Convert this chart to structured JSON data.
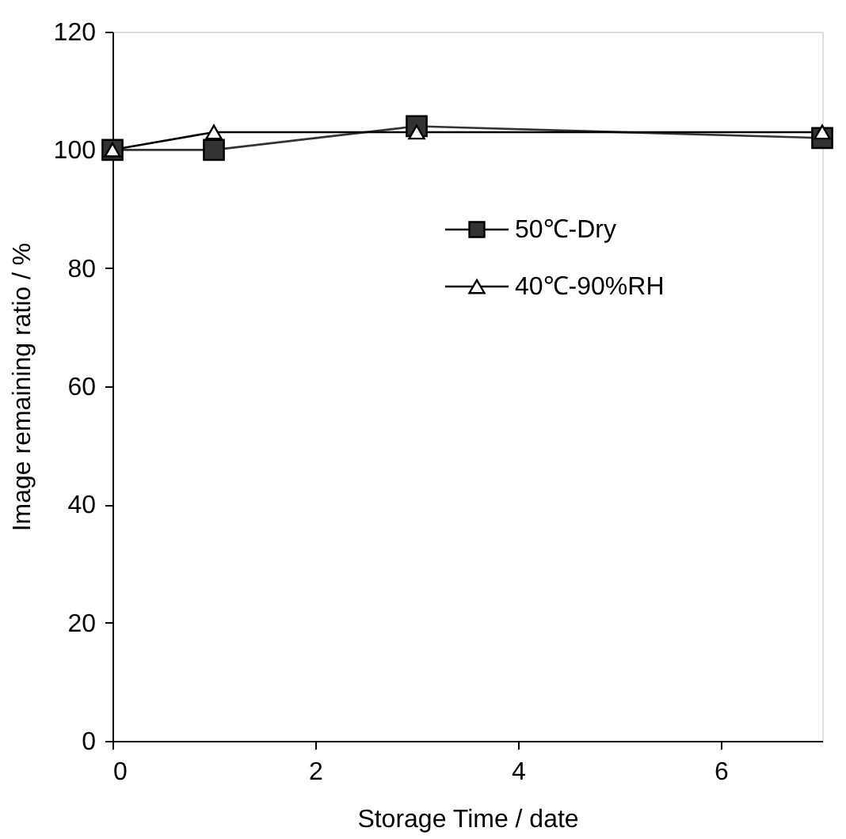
{
  "chart_data": {
    "type": "line",
    "xlabel": "Storage Time / date",
    "ylabel": "Image remaining ratio / %",
    "x": [
      0,
      1,
      3,
      7
    ],
    "series": [
      {
        "name": "50℃-Dry",
        "color": "#333333",
        "marker": "square",
        "values": [
          100,
          100,
          104,
          102
        ]
      },
      {
        "name": "40℃-90%RH",
        "color": "#000000",
        "marker": "triangle",
        "values": [
          100,
          103,
          103,
          103
        ]
      }
    ],
    "xlim": [
      0,
      7
    ],
    "xticks": [
      0,
      2,
      4,
      6
    ],
    "ylim": [
      0,
      120
    ],
    "yticks": [
      0,
      20,
      40,
      60,
      80,
      100,
      120
    ],
    "grid": false,
    "legend": "right",
    "line_style": "solid"
  }
}
